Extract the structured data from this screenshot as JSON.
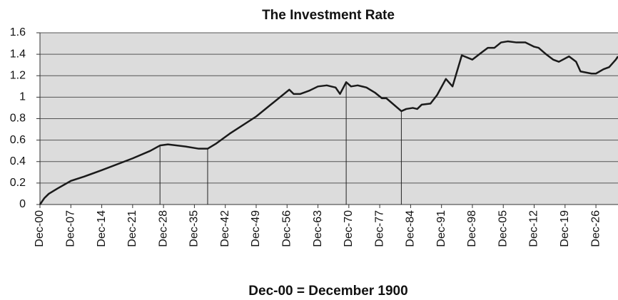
{
  "chart_data": {
    "type": "line",
    "title": "The Investment Rate",
    "x_label": "Dec-00 = December 1900",
    "x": [
      1900,
      1901,
      1902,
      1904,
      1907,
      1910,
      1914,
      1921,
      1925,
      1927.2,
      1929,
      1933,
      1936,
      1938,
      1940,
      1943,
      1949,
      1956.5,
      1957.5,
      1959,
      1961,
      1963,
      1965,
      1967,
      1968,
      1969.4,
      1970.5,
      1972,
      1974,
      1976,
      1977.5,
      1978.5,
      1981.9,
      1983,
      1984.5,
      1985.5,
      1986.5,
      1988.5,
      1990,
      1992,
      1993.5,
      1995.6,
      1998,
      2000.2,
      2001.5,
      2003,
      2004.5,
      2006,
      2008,
      2010,
      2012,
      2013,
      2014.7,
      2016.3,
      2017.6,
      2019.9,
      2021.5,
      2022.5,
      2025,
      2026,
      2027.7,
      2029,
      2030.5,
      2031
    ],
    "series": [
      {
        "name": "Investment rate",
        "color": "#1a1a1a",
        "values": [
          0,
          0.06,
          0.1,
          0.15,
          0.22,
          0.26,
          0.32,
          0.43,
          0.5,
          0.55,
          0.56,
          0.54,
          0.52,
          0.52,
          0.57,
          0.66,
          0.82,
          1.07,
          1.03,
          1.03,
          1.06,
          1.1,
          1.11,
          1.09,
          1.03,
          1.14,
          1.1,
          1.11,
          1.09,
          1.04,
          0.99,
          0.99,
          0.87,
          0.89,
          0.9,
          0.89,
          0.93,
          0.94,
          1.02,
          1.17,
          1.1,
          1.39,
          1.35,
          1.42,
          1.46,
          1.46,
          1.51,
          1.52,
          1.51,
          1.51,
          1.47,
          1.46,
          1.4,
          1.35,
          1.33,
          1.38,
          1.33,
          1.24,
          1.22,
          1.22,
          1.26,
          1.28,
          1.35,
          1.38
        ]
      }
    ],
    "drop_lines": [
      {
        "x": 1927.2,
        "y": 0.55
      },
      {
        "x": 1938,
        "y": 0.52
      },
      {
        "x": 1969.4,
        "y": 1.14
      },
      {
        "x": 1981.9,
        "y": 0.87
      }
    ],
    "xlim": [
      1900,
      2031
    ],
    "xticks": [
      {
        "value": 1900,
        "label": "Dec-00"
      },
      {
        "value": 1907,
        "label": "Dec-07"
      },
      {
        "value": 1914,
        "label": "Dec-14"
      },
      {
        "value": 1921,
        "label": "Dec-21"
      },
      {
        "value": 1928,
        "label": "Dec-28"
      },
      {
        "value": 1935,
        "label": "Dec-35"
      },
      {
        "value": 1942,
        "label": "Dec-42"
      },
      {
        "value": 1949,
        "label": "Dec-49"
      },
      {
        "value": 1956,
        "label": "Dec-56"
      },
      {
        "value": 1963,
        "label": "Dec-63"
      },
      {
        "value": 1970,
        "label": "Dec-70"
      },
      {
        "value": 1977,
        "label": "Dec-77"
      },
      {
        "value": 1984,
        "label": "Dec-84"
      },
      {
        "value": 1991,
        "label": "Dec-91"
      },
      {
        "value": 1998,
        "label": "Dec-98"
      },
      {
        "value": 2005,
        "label": "Dec-05"
      },
      {
        "value": 2012,
        "label": "Dec-12"
      },
      {
        "value": 2019,
        "label": "Dec-19"
      },
      {
        "value": 2026,
        "label": "Dec-26"
      }
    ],
    "ylim": [
      0,
      1.6
    ],
    "yticks": [
      0,
      0.2,
      0.4,
      0.6,
      0.8,
      1,
      1.2,
      1.4,
      1.6
    ],
    "grid": true,
    "background": "#dcdcdc"
  }
}
